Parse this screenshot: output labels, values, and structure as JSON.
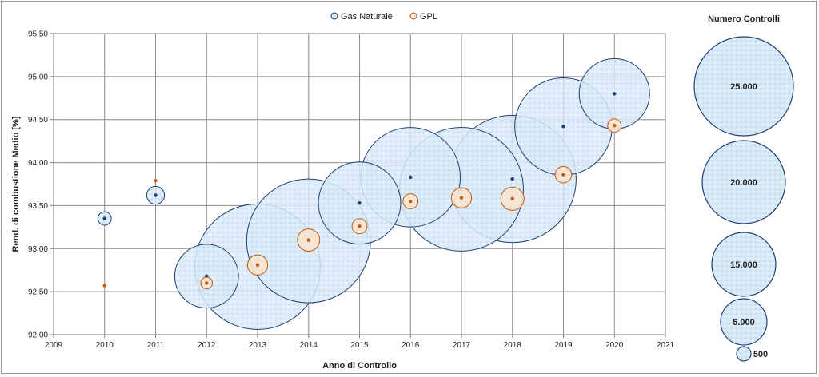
{
  "chart_data": {
    "type": "bubble",
    "xlabel": "Anno di Controllo",
    "ylabel": "Rend. di combustione Medio [%]",
    "xlim": [
      2009,
      2021
    ],
    "ylim": [
      92.0,
      95.5
    ],
    "x_ticks": [
      "2009",
      "2010",
      "2011",
      "2012",
      "2013",
      "2014",
      "2015",
      "2016",
      "2017",
      "2018",
      "2019",
      "2020",
      "2021"
    ],
    "y_ticks": [
      "92,00",
      "92,50",
      "93,00",
      "93,50",
      "94,00",
      "94,50",
      "95,00",
      "95,50"
    ],
    "grid": true,
    "legend_position": "top",
    "series": [
      {
        "name": "Gas Naturale",
        "color": "#1f3f74",
        "fill": "#d6e9f8",
        "points": [
          {
            "x": 2010,
            "y": 93.35,
            "size": 400
          },
          {
            "x": 2011,
            "y": 93.62,
            "size": 700
          },
          {
            "x": 2012,
            "y": 92.68,
            "size": 9000
          },
          {
            "x": 2013,
            "y": 92.79,
            "size": 35000
          },
          {
            "x": 2014,
            "y": 93.09,
            "size": 34000
          },
          {
            "x": 2015,
            "y": 93.53,
            "size": 15000
          },
          {
            "x": 2016,
            "y": 93.83,
            "size": 22000
          },
          {
            "x": 2017,
            "y": 93.69,
            "size": 34000
          },
          {
            "x": 2018,
            "y": 93.81,
            "size": 36000
          },
          {
            "x": 2019,
            "y": 94.42,
            "size": 21000
          },
          {
            "x": 2020,
            "y": 94.8,
            "size": 11000
          }
        ]
      },
      {
        "name": "GPL",
        "color": "#c55a11",
        "fill": "#f8e3cf",
        "points": [
          {
            "x": 2010,
            "y": 92.57,
            "size": 20
          },
          {
            "x": 2011,
            "y": 93.79,
            "size": 20
          },
          {
            "x": 2012,
            "y": 92.6,
            "size": 300
          },
          {
            "x": 2013,
            "y": 92.81,
            "size": 900
          },
          {
            "x": 2014,
            "y": 93.1,
            "size": 1100
          },
          {
            "x": 2015,
            "y": 93.26,
            "size": 500
          },
          {
            "x": 2016,
            "y": 93.55,
            "size": 500
          },
          {
            "x": 2017,
            "y": 93.59,
            "size": 900
          },
          {
            "x": 2018,
            "y": 93.58,
            "size": 1200
          },
          {
            "x": 2019,
            "y": 93.86,
            "size": 600
          },
          {
            "x": 2020,
            "y": 94.43,
            "size": 400
          }
        ]
      }
    ],
    "size_legend": {
      "title": "Numero Controlli",
      "entries": [
        {
          "label": "25.000",
          "size": 25000
        },
        {
          "label": "20.000",
          "size": 20000
        },
        {
          "label": "15.000",
          "size": 15000
        },
        {
          "label": "5.000",
          "size": 5000
        },
        {
          "label": "500",
          "size": 500
        }
      ]
    }
  }
}
